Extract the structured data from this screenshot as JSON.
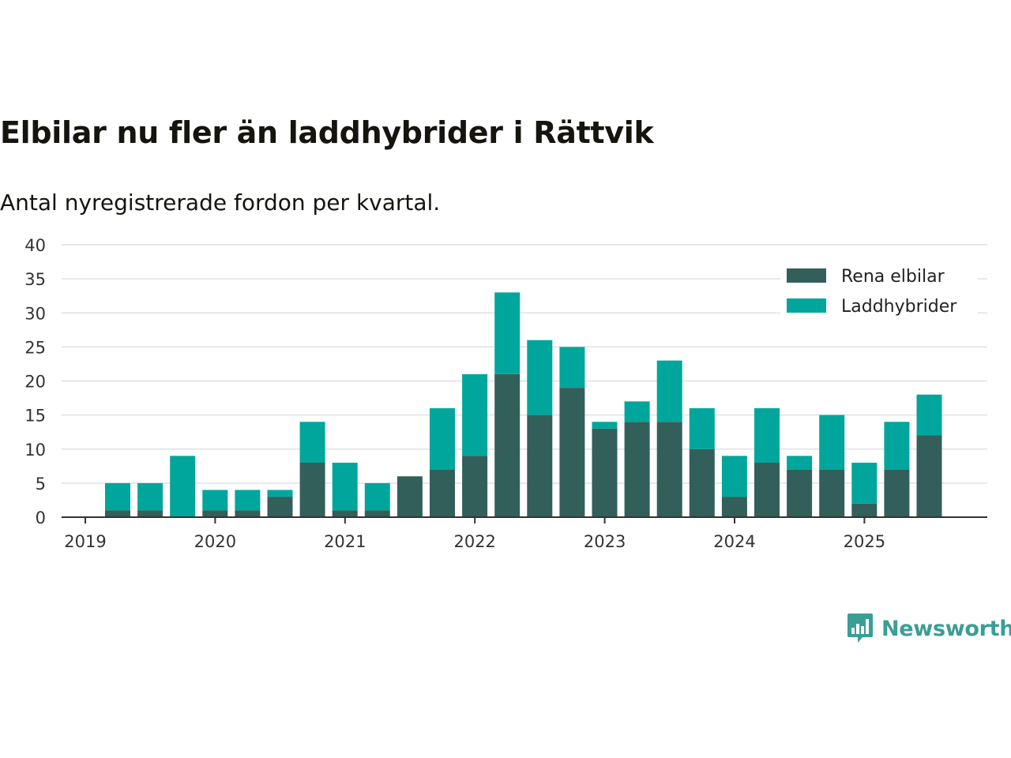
{
  "title": "Elbilar nu fler än laddhybrider i Rättvik",
  "subtitle": "Antal nyregistrerade fordon per kvartal.",
  "brand": {
    "name": "Newsworthy",
    "icon": "newsworthy-logo-icon"
  },
  "colors": {
    "rena_elbilar": "#335f5a",
    "laddhybrider": "#00a69b",
    "grid": "#dde1e6",
    "axis": "#333333"
  },
  "chart_data": {
    "type": "bar",
    "stacked": true,
    "title": "Elbilar nu fler än laddhybrider i Rättvik",
    "subtitle": "Antal nyregistrerade fordon per kvartal.",
    "xlabel": "",
    "ylabel": "",
    "ylim": [
      0,
      40
    ],
    "yticks": [
      0,
      5,
      10,
      15,
      20,
      25,
      30,
      35,
      40
    ],
    "xticks": [
      "2019",
      "2020",
      "2021",
      "2022",
      "2023",
      "2024",
      "2025"
    ],
    "grid": true,
    "legend_position": "top-right",
    "categories": [
      "2019 Q2",
      "2019 Q3",
      "2019 Q4",
      "2020 Q1",
      "2020 Q2",
      "2020 Q3",
      "2020 Q4",
      "2021 Q1",
      "2021 Q2",
      "2021 Q3",
      "2021 Q4",
      "2022 Q1",
      "2022 Q2",
      "2022 Q3",
      "2022 Q4",
      "2023 Q1",
      "2023 Q2",
      "2023 Q3",
      "2023 Q4",
      "2024 Q1",
      "2024 Q2",
      "2024 Q3",
      "2024 Q4",
      "2025 Q1",
      "2025 Q2",
      "2025 Q3"
    ],
    "series": [
      {
        "name": "Rena elbilar",
        "values": [
          1,
          1,
          0,
          1,
          1,
          3,
          8,
          1,
          1,
          6,
          7,
          9,
          21,
          15,
          19,
          13,
          14,
          14,
          10,
          3,
          8,
          7,
          7,
          2,
          7,
          12
        ]
      },
      {
        "name": "Laddhybrider",
        "values": [
          4,
          4,
          9,
          3,
          3,
          1,
          6,
          7,
          4,
          0,
          9,
          12,
          12,
          11,
          6,
          1,
          3,
          9,
          6,
          6,
          8,
          2,
          8,
          6,
          7,
          6
        ]
      }
    ]
  }
}
